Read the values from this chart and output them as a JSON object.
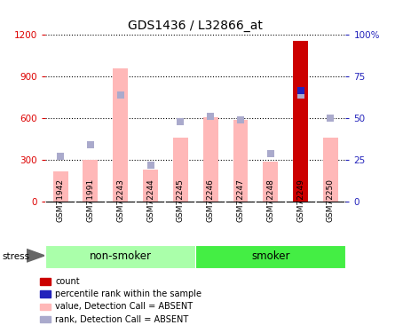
{
  "title": "GDS1436 / L32866_at",
  "samples": [
    "GSM71942",
    "GSM71991",
    "GSM72243",
    "GSM72244",
    "GSM72245",
    "GSM72246",
    "GSM72247",
    "GSM72248",
    "GSM72249",
    "GSM72250"
  ],
  "values_absent": [
    220,
    300,
    960,
    230,
    460,
    610,
    590,
    290,
    1160,
    460
  ],
  "ranks_absent_pct": [
    27,
    34,
    64,
    22,
    48,
    51,
    49,
    29,
    64,
    50
  ],
  "count_value": 1160,
  "count_sample_idx": 8,
  "count_rank_pct": 64,
  "ylim_left": [
    0,
    1200
  ],
  "ylim_right": [
    0,
    100
  ],
  "yticks_left": [
    0,
    300,
    600,
    900,
    1200
  ],
  "yticks_right": [
    0,
    25,
    50,
    75,
    100
  ],
  "ytick_labels_left": [
    "0",
    "300",
    "600",
    "900",
    "1200"
  ],
  "ytick_labels_right": [
    "0",
    "25",
    "50",
    "75",
    "100%"
  ],
  "bar_color_absent": "#FFB8B8",
  "rank_color_absent": "#AAAACC",
  "count_bar_color": "#CC0000",
  "rank_marker_color": "#2222BB",
  "non_smoker_color": "#AAFFAA",
  "smoker_color": "#44EE44",
  "stress_label": "stress",
  "non_smoker_label": "non-smoker",
  "smoker_label": "smoker",
  "bar_width": 0.5,
  "marker_size": 6,
  "legend_items": [
    {
      "label": "count",
      "color": "#CC0000"
    },
    {
      "label": "percentile rank within the sample",
      "color": "#2222BB"
    },
    {
      "label": "value, Detection Call = ABSENT",
      "color": "#FFB8B8"
    },
    {
      "label": "rank, Detection Call = ABSENT",
      "color": "#AAAACC"
    }
  ]
}
